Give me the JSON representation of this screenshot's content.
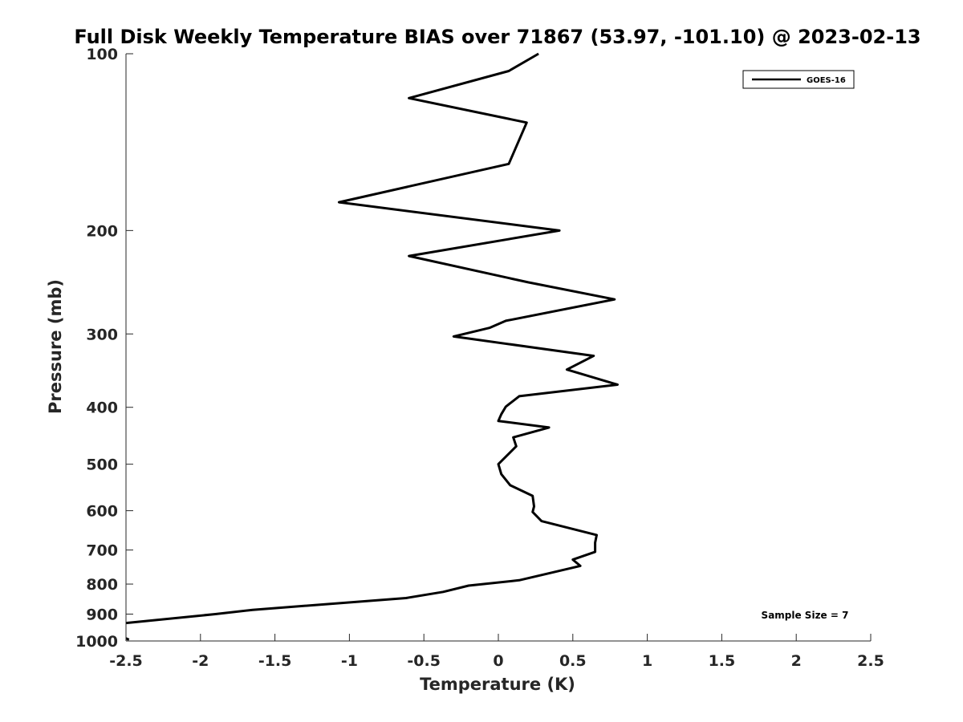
{
  "chart_data": {
    "type": "line",
    "title": "Full Disk Weekly Temperature BIAS over 71867 (53.97, -101.10) @ 2023-02-13",
    "xlabel": "Temperature (K)",
    "ylabel": "Pressure (mb)",
    "xlim": [
      -2.5,
      2.5
    ],
    "ylim": [
      100,
      1000
    ],
    "yscale": "log",
    "yreversed": true,
    "xticks": [
      -2.5,
      -2,
      -1.5,
      -1,
      -0.5,
      0,
      0.5,
      1,
      1.5,
      2,
      2.5
    ],
    "xtick_labels": [
      "-2.5",
      "-2",
      "-1.5",
      "-1",
      "-0.5",
      "0",
      "0.5",
      "1",
      "1.5",
      "2",
      "2.5"
    ],
    "yticks": [
      100,
      200,
      300,
      400,
      500,
      600,
      700,
      800,
      900,
      1000
    ],
    "ytick_labels": [
      "100",
      "200",
      "300",
      "400",
      "500",
      "600",
      "700",
      "800",
      "900",
      "1000"
    ],
    "grid": false,
    "legend_position": "top-right",
    "annotation": "Sample Size = 7",
    "series": [
      {
        "name": "GOES-16",
        "color": "#000000",
        "points": [
          [
            0.27,
            100
          ],
          [
            0.07,
            107
          ],
          [
            -0.6,
            119
          ],
          [
            0.19,
            131
          ],
          [
            0.07,
            154
          ],
          [
            -1.07,
            179
          ],
          [
            0.41,
            200
          ],
          [
            -0.6,
            221
          ],
          [
            0.2,
            245
          ],
          [
            0.78,
            262
          ],
          [
            0.05,
            285
          ],
          [
            -0.06,
            293
          ],
          [
            -0.3,
            303
          ],
          [
            0.64,
            327
          ],
          [
            0.46,
            345
          ],
          [
            0.8,
            366
          ],
          [
            0.14,
            383
          ],
          [
            0.05,
            399
          ],
          [
            0.02,
            411
          ],
          [
            0.0,
            422
          ],
          [
            0.34,
            433
          ],
          [
            0.1,
            450
          ],
          [
            0.12,
            466
          ],
          [
            0.0,
            500
          ],
          [
            0.02,
            520
          ],
          [
            0.08,
            543
          ],
          [
            0.23,
            566
          ],
          [
            0.24,
            590
          ],
          [
            0.23,
            603
          ],
          [
            0.29,
            625
          ],
          [
            0.66,
            660
          ],
          [
            0.65,
            680
          ],
          [
            0.65,
            705
          ],
          [
            0.5,
            727
          ],
          [
            0.55,
            745
          ],
          [
            0.33,
            768
          ],
          [
            0.14,
            788
          ],
          [
            -0.2,
            805
          ],
          [
            -0.37,
            825
          ],
          [
            -0.62,
            845
          ],
          [
            -1.65,
            885
          ],
          [
            -1.9,
            900
          ],
          [
            -2.5,
            932
          ]
        ]
      }
    ],
    "extra_segment_points": [
      [
        -2.5,
        990
      ],
      [
        -2.48,
        995
      ]
    ]
  }
}
